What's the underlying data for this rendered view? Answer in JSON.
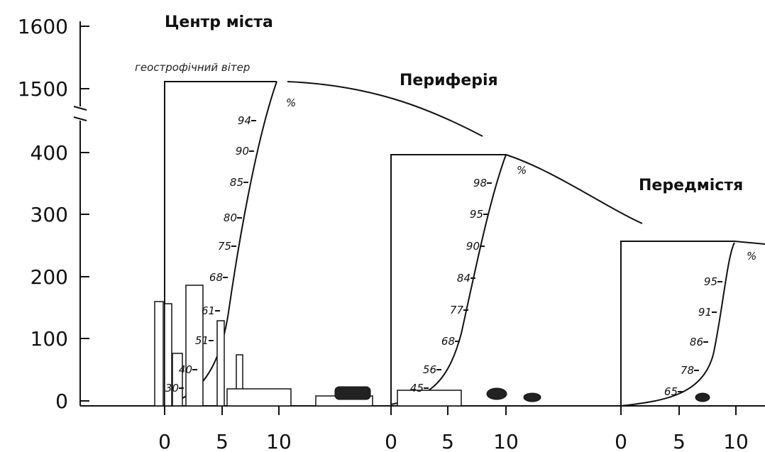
{
  "y_axis": {
    "ticks": [
      "1600",
      "1500",
      "400",
      "300",
      "200",
      "100",
      "0"
    ]
  },
  "annotation": "геострофічний вітер",
  "profiles": [
    {
      "title": "Центр міста",
      "x_ticks": [
        "0",
        "5",
        "10"
      ],
      "percent_sign": "%",
      "levels": [
        "94",
        "90",
        "85",
        "80",
        "75",
        "68",
        "61",
        "51",
        "40",
        "30"
      ]
    },
    {
      "title": "Периферія",
      "x_ticks": [
        "0",
        "5",
        "10"
      ],
      "percent_sign": "%",
      "levels": [
        "98",
        "95",
        "90",
        "84",
        "77",
        "68",
        "56",
        "45"
      ]
    },
    {
      "title": "Передмістя",
      "x_ticks": [
        "0",
        "5",
        "10"
      ],
      "percent_sign": "%",
      "levels": [
        "95",
        "91",
        "86",
        "78",
        "65"
      ]
    }
  ]
}
